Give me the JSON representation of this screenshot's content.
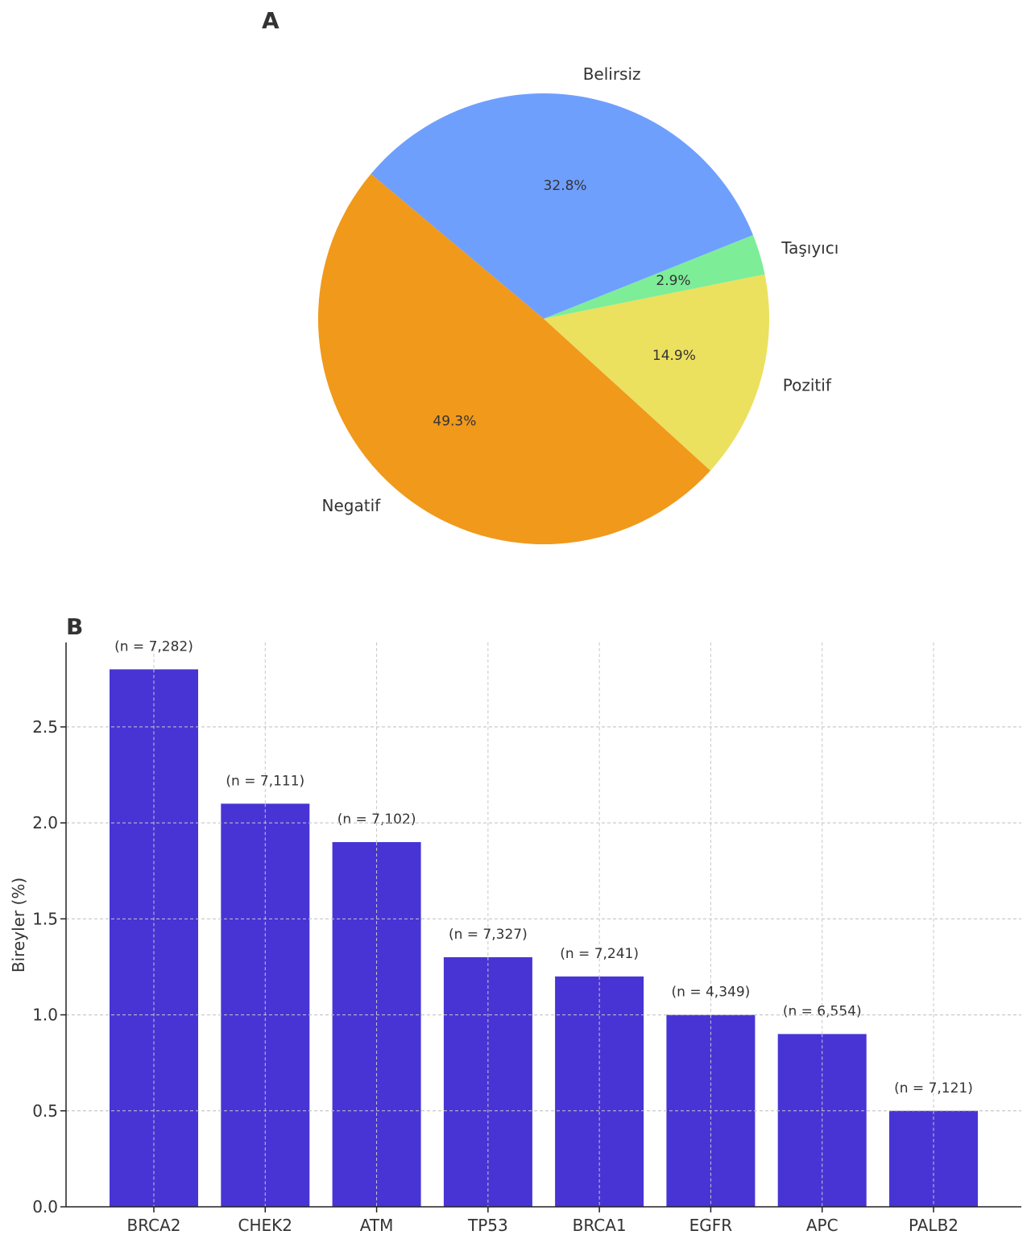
{
  "panels": {
    "a": "A",
    "b": "B"
  },
  "chart_data": [
    {
      "type": "pie",
      "labels": [
        "Belirsiz",
        "Taşıyıcı",
        "Pozitif",
        "Negatif"
      ],
      "values": [
        32.8,
        2.9,
        14.9,
        49.3
      ],
      "value_labels": [
        "32.8%",
        "2.9%",
        "14.9%",
        "49.3%"
      ],
      "colors": [
        "#6f9ffd",
        "#7ded98",
        "#ece05f",
        "#f0991b"
      ],
      "start_angle": 140,
      "direction": "clockwise"
    },
    {
      "type": "bar",
      "categories": [
        "BRCA2",
        "CHEK2",
        "ATM",
        "TP53",
        "BRCA1",
        "EGFR",
        "APC",
        "PALB2"
      ],
      "values": [
        2.8,
        2.1,
        1.9,
        1.3,
        1.2,
        1.0,
        0.9,
        0.5
      ],
      "annotations": [
        "(n = 7,282)",
        "(n = 7,111)",
        "(n = 7,102)",
        "(n = 7,327)",
        "(n = 7,241)",
        "(n = 4,349)",
        "(n = 6,554)",
        "(n = 7,121)"
      ],
      "ylabel": "Bireyler (%)",
      "ylim": [
        0,
        2.94
      ],
      "yticks": [
        "0.0",
        "0.5",
        "1.0",
        "1.5",
        "2.0",
        "2.5"
      ],
      "grid": true,
      "bar_color": "#4834d4"
    }
  ]
}
